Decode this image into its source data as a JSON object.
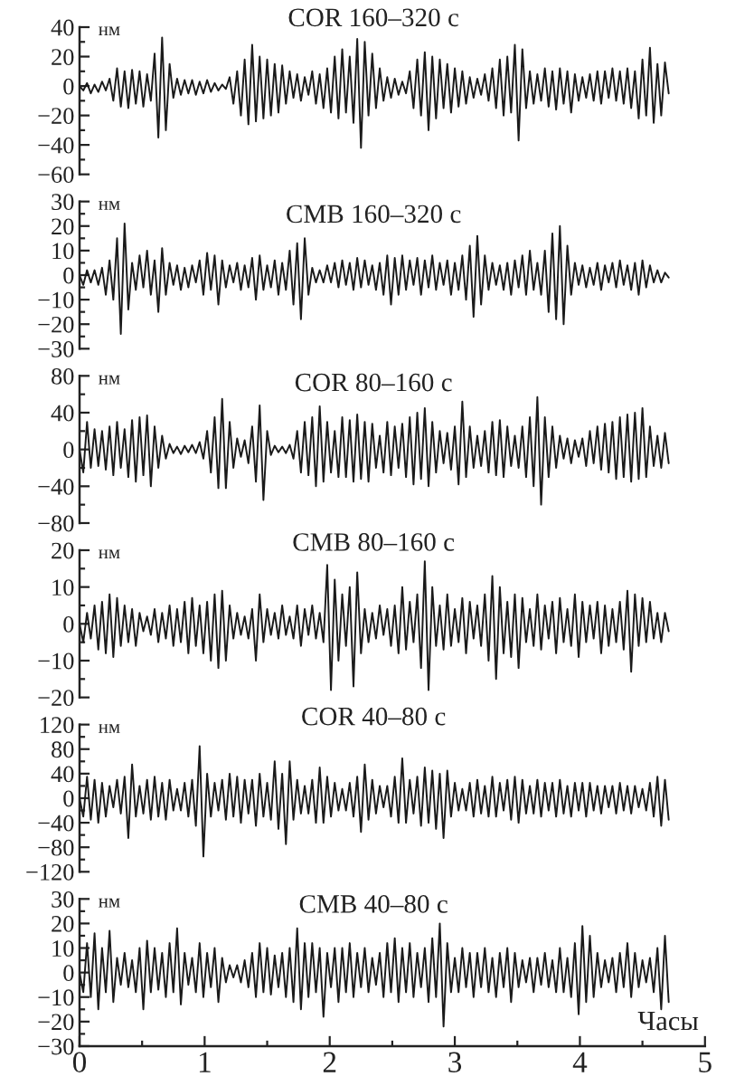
{
  "chart_data": [
    {
      "type": "line",
      "title": "COR 160–320 с",
      "ylabel": "нм",
      "color": "#1a1a1a",
      "x": [
        0,
        0.03,
        0.06,
        0.09,
        0.12,
        0.15,
        0.18,
        0.21,
        0.24,
        0.27,
        0.3,
        0.33,
        0.36,
        0.39,
        0.42,
        0.45,
        0.48,
        0.51,
        0.54,
        0.57,
        0.6,
        0.63,
        0.66,
        0.69,
        0.72,
        0.75,
        0.78,
        0.81,
        0.84,
        0.87,
        0.9,
        0.93,
        0.96,
        0.99,
        1.02,
        1.05,
        1.08,
        1.11,
        1.14,
        1.17,
        1.2,
        1.23,
        1.26,
        1.29,
        1.32,
        1.35,
        1.38,
        1.41,
        1.44,
        1.47,
        1.5,
        1.53,
        1.56,
        1.59,
        1.62,
        1.65,
        1.68,
        1.71,
        1.74,
        1.77,
        1.8,
        1.83,
        1.86,
        1.89,
        1.92,
        1.95,
        1.98,
        2.01,
        2.04,
        2.07,
        2.1,
        2.13,
        2.16,
        2.19,
        2.22,
        2.25,
        2.28,
        2.31,
        2.34,
        2.37,
        2.4,
        2.43,
        2.46,
        2.49,
        2.52,
        2.55,
        2.58,
        2.61,
        2.64,
        2.67,
        2.7,
        2.73,
        2.76,
        2.79,
        2.82,
        2.85,
        2.88,
        2.91,
        2.94,
        2.97,
        3,
        3.03,
        3.06,
        3.09,
        3.12,
        3.15,
        3.18,
        3.21,
        3.24,
        3.27,
        3.3,
        3.33,
        3.36,
        3.39,
        3.42,
        3.45,
        3.48,
        3.51,
        3.54,
        3.57,
        3.6,
        3.63,
        3.66,
        3.69,
        3.72,
        3.75,
        3.78,
        3.81,
        3.84,
        3.87,
        3.9,
        3.93,
        3.96,
        3.99,
        4.02,
        4.05,
        4.08,
        4.11,
        4.14,
        4.17,
        4.2,
        4.23,
        4.26,
        4.29,
        4.32,
        4.35,
        4.38,
        4.41,
        4.44,
        4.47,
        4.5,
        4.53,
        4.56,
        4.59,
        4.62,
        4.65,
        4.68,
        4.71
      ],
      "values": [
        0,
        -3,
        2,
        -5,
        1,
        -4,
        3,
        -3,
        5,
        -10,
        12,
        -14,
        10,
        -15,
        11,
        -12,
        10,
        -14,
        8,
        -10,
        22,
        -35,
        33,
        -30,
        15,
        -8,
        5,
        -6,
        4,
        -5,
        4,
        -6,
        3,
        -5,
        4,
        -4,
        2,
        -3,
        1,
        -2,
        6,
        -12,
        10,
        -20,
        18,
        -26,
        28,
        -24,
        20,
        -22,
        18,
        -20,
        15,
        -18,
        14,
        -12,
        10,
        -8,
        8,
        -10,
        6,
        -6,
        10,
        -12,
        8,
        -15,
        12,
        -18,
        20,
        -22,
        25,
        -18,
        20,
        -25,
        32,
        -42,
        30,
        -20,
        22,
        -15,
        12,
        -10,
        6,
        -8,
        5,
        -6,
        3,
        -5,
        10,
        -15,
        18,
        -20,
        23,
        -30,
        20,
        -22,
        18,
        -15,
        15,
        -18,
        12,
        -14,
        10,
        -12,
        6,
        -8,
        5,
        -6,
        8,
        -10,
        12,
        -15,
        18,
        -20,
        20,
        -18,
        28,
        -37,
        25,
        -15,
        10,
        -12,
        8,
        -10,
        12,
        -14,
        10,
        -16,
        12,
        -12,
        10,
        -18,
        8,
        -10,
        6,
        -8,
        8,
        -10,
        10,
        -12,
        10,
        -8,
        12,
        -10,
        10,
        -12,
        12,
        -15,
        10,
        -22,
        18,
        -20,
        26,
        -25,
        15,
        -20,
        16,
        -5
      ],
      "xlim": [
        0,
        5
      ],
      "ylim": [
        -60,
        40
      ],
      "yticks": [
        40,
        20,
        0,
        -20,
        -40,
        -60,
        {
          "value": 30,
          "label": null
        },
        {
          "value": 10,
          "label": null
        },
        {
          "value": -10,
          "label": null
        },
        {
          "value": -30,
          "label": null
        },
        {
          "value": -50,
          "label": null
        }
      ],
      "tick_labels": "y"
    },
    {
      "type": "line",
      "title": "CMB 160–320 с",
      "ylabel": "нм",
      "color": "#1a1a1a",
      "x": [
        0,
        0.03,
        0.06,
        0.09,
        0.12,
        0.15,
        0.18,
        0.21,
        0.24,
        0.27,
        0.3,
        0.33,
        0.36,
        0.39,
        0.42,
        0.45,
        0.48,
        0.51,
        0.54,
        0.57,
        0.6,
        0.63,
        0.66,
        0.69,
        0.72,
        0.75,
        0.78,
        0.81,
        0.84,
        0.87,
        0.9,
        0.93,
        0.96,
        0.99,
        1.02,
        1.05,
        1.08,
        1.11,
        1.14,
        1.17,
        1.2,
        1.23,
        1.26,
        1.29,
        1.32,
        1.35,
        1.38,
        1.41,
        1.44,
        1.47,
        1.5,
        1.53,
        1.56,
        1.59,
        1.62,
        1.65,
        1.68,
        1.71,
        1.74,
        1.77,
        1.8,
        1.83,
        1.86,
        1.89,
        1.92,
        1.95,
        1.98,
        2.01,
        2.04,
        2.07,
        2.1,
        2.13,
        2.16,
        2.19,
        2.22,
        2.25,
        2.28,
        2.31,
        2.34,
        2.37,
        2.4,
        2.43,
        2.46,
        2.49,
        2.52,
        2.55,
        2.58,
        2.61,
        2.64,
        2.67,
        2.7,
        2.73,
        2.76,
        2.79,
        2.82,
        2.85,
        2.88,
        2.91,
        2.94,
        2.97,
        3,
        3.03,
        3.06,
        3.09,
        3.12,
        3.15,
        3.18,
        3.21,
        3.24,
        3.27,
        3.3,
        3.33,
        3.36,
        3.39,
        3.42,
        3.45,
        3.48,
        3.51,
        3.54,
        3.57,
        3.6,
        3.63,
        3.66,
        3.69,
        3.72,
        3.75,
        3.78,
        3.81,
        3.84,
        3.87,
        3.9,
        3.93,
        3.96,
        3.99,
        4.02,
        4.05,
        4.08,
        4.11,
        4.14,
        4.17,
        4.2,
        4.23,
        4.26,
        4.29,
        4.32,
        4.35,
        4.38,
        4.41,
        4.44,
        4.47,
        4.5,
        4.53,
        4.56,
        4.59,
        4.62,
        4.65,
        4.68,
        4.71
      ],
      "values": [
        0,
        -4,
        2,
        -3,
        2,
        -4,
        3,
        -8,
        6,
        -10,
        15,
        -24,
        21,
        -14,
        5,
        -6,
        8,
        -5,
        10,
        -8,
        6,
        -15,
        11,
        -8,
        5,
        -4,
        4,
        -6,
        3,
        -5,
        4,
        -3,
        6,
        -8,
        9,
        -6,
        8,
        -12,
        6,
        -5,
        4,
        -3,
        5,
        -6,
        4,
        -5,
        7,
        -10,
        8,
        -6,
        4,
        -5,
        6,
        -8,
        5,
        -6,
        10,
        -12,
        13,
        -18,
        15,
        -8,
        3,
        -3,
        2,
        -3,
        4,
        -3,
        5,
        -5,
        6,
        -4,
        5,
        -6,
        7,
        -5,
        6,
        -4,
        4,
        -6,
        5,
        -8,
        8,
        -12,
        7,
        -8,
        8,
        -6,
        6,
        -4,
        7,
        -8,
        6,
        -5,
        8,
        -6,
        5,
        -4,
        6,
        -8,
        5,
        -6,
        8,
        -10,
        12,
        -17,
        16,
        -12,
        8,
        -6,
        5,
        -4,
        4,
        -6,
        5,
        -8,
        6,
        -5,
        8,
        -8,
        10,
        -6,
        5,
        -8,
        10,
        -15,
        17,
        -18,
        20,
        -20,
        12,
        -8,
        5,
        -4,
        4,
        -5,
        3,
        -4,
        5,
        -6,
        4,
        -3,
        5,
        -5,
        6,
        -4,
        4,
        -6,
        5,
        -8,
        6,
        -5,
        4,
        -3,
        2,
        -3,
        1,
        -1
      ],
      "xlim": [
        0,
        5
      ],
      "ylim": [
        -30,
        30
      ],
      "yticks": [
        30,
        20,
        10,
        0,
        -10,
        -20,
        -30,
        {
          "value": 25,
          "label": null
        },
        {
          "value": 15,
          "label": null
        },
        {
          "value": 5,
          "label": null
        },
        {
          "value": -5,
          "label": null
        },
        {
          "value": -15,
          "label": null
        },
        {
          "value": -25,
          "label": null
        }
      ],
      "tick_labels": "y"
    },
    {
      "type": "line",
      "title": "COR 80–160 с",
      "ylabel": "нм",
      "color": "#1a1a1a",
      "x": [
        0,
        0.03,
        0.06,
        0.09,
        0.12,
        0.15,
        0.18,
        0.21,
        0.24,
        0.27,
        0.3,
        0.33,
        0.36,
        0.39,
        0.42,
        0.45,
        0.48,
        0.51,
        0.54,
        0.57,
        0.6,
        0.63,
        0.66,
        0.69,
        0.72,
        0.75,
        0.78,
        0.81,
        0.84,
        0.87,
        0.9,
        0.93,
        0.96,
        0.99,
        1.02,
        1.05,
        1.08,
        1.11,
        1.14,
        1.17,
        1.2,
        1.23,
        1.26,
        1.29,
        1.32,
        1.35,
        1.38,
        1.41,
        1.44,
        1.47,
        1.5,
        1.53,
        1.56,
        1.59,
        1.62,
        1.65,
        1.68,
        1.71,
        1.74,
        1.77,
        1.8,
        1.83,
        1.86,
        1.89,
        1.92,
        1.95,
        1.98,
        2.01,
        2.04,
        2.07,
        2.1,
        2.13,
        2.16,
        2.19,
        2.22,
        2.25,
        2.28,
        2.31,
        2.34,
        2.37,
        2.4,
        2.43,
        2.46,
        2.49,
        2.52,
        2.55,
        2.58,
        2.61,
        2.64,
        2.67,
        2.7,
        2.73,
        2.76,
        2.79,
        2.82,
        2.85,
        2.88,
        2.91,
        2.94,
        2.97,
        3,
        3.03,
        3.06,
        3.09,
        3.12,
        3.15,
        3.18,
        3.21,
        3.24,
        3.27,
        3.3,
        3.33,
        3.36,
        3.39,
        3.42,
        3.45,
        3.48,
        3.51,
        3.54,
        3.57,
        3.6,
        3.63,
        3.66,
        3.69,
        3.72,
        3.75,
        3.78,
        3.81,
        3.84,
        3.87,
        3.9,
        3.93,
        3.96,
        3.99,
        4.02,
        4.05,
        4.08,
        4.11,
        4.14,
        4.17,
        4.2,
        4.23,
        4.26,
        4.29,
        4.32,
        4.35,
        4.38,
        4.41,
        4.44,
        4.47,
        4.5,
        4.53,
        4.56,
        4.59,
        4.62,
        4.65,
        4.68,
        4.71
      ],
      "values": [
        0,
        -25,
        30,
        -20,
        22,
        -18,
        20,
        -22,
        25,
        -28,
        30,
        -20,
        22,
        -30,
        32,
        -35,
        35,
        -28,
        37,
        -40,
        25,
        -20,
        15,
        -10,
        6,
        -4,
        3,
        -5,
        4,
        -3,
        5,
        -4,
        8,
        -10,
        20,
        -25,
        35,
        -42,
        55,
        -42,
        30,
        -20,
        12,
        -8,
        10,
        -15,
        25,
        -35,
        48,
        -55,
        20,
        -6,
        4,
        -3,
        3,
        -4,
        5,
        -10,
        20,
        -25,
        30,
        -28,
        35,
        -40,
        47,
        -35,
        30,
        -25,
        20,
        -30,
        35,
        -30,
        32,
        -35,
        38,
        -32,
        30,
        -35,
        28,
        -20,
        15,
        -25,
        30,
        -28,
        25,
        -20,
        28,
        -30,
        35,
        -38,
        40,
        -32,
        45,
        -40,
        30,
        -25,
        20,
        -15,
        18,
        -22,
        25,
        -38,
        52,
        -30,
        25,
        -20,
        15,
        -18,
        20,
        -25,
        30,
        -28,
        32,
        -30,
        25,
        -18,
        15,
        -20,
        25,
        -30,
        35,
        -40,
        57,
        -60,
        35,
        -30,
        25,
        -20,
        15,
        -10,
        12,
        -15,
        10,
        -8,
        12,
        -18,
        20,
        -15,
        25,
        -22,
        28,
        -25,
        30,
        -32,
        35,
        -30,
        38,
        -35,
        40,
        -32,
        45,
        -30,
        25,
        -18,
        15,
        -20,
        18,
        -15
      ],
      "xlim": [
        0,
        5
      ],
      "ylim": [
        -80,
        80
      ],
      "yticks": [
        80,
        40,
        0,
        -40,
        -80,
        {
          "value": 60,
          "label": null
        },
        {
          "value": 20,
          "label": null
        },
        {
          "value": -20,
          "label": null
        },
        {
          "value": -60,
          "label": null
        }
      ],
      "tick_labels": "y"
    },
    {
      "type": "line",
      "title": "CMB 80–160 с",
      "ylabel": "нм",
      "color": "#1a1a1a",
      "x": [
        0,
        0.03,
        0.06,
        0.09,
        0.12,
        0.15,
        0.18,
        0.21,
        0.24,
        0.27,
        0.3,
        0.33,
        0.36,
        0.39,
        0.42,
        0.45,
        0.48,
        0.51,
        0.54,
        0.57,
        0.6,
        0.63,
        0.66,
        0.69,
        0.72,
        0.75,
        0.78,
        0.81,
        0.84,
        0.87,
        0.9,
        0.93,
        0.96,
        0.99,
        1.02,
        1.05,
        1.08,
        1.11,
        1.14,
        1.17,
        1.2,
        1.23,
        1.26,
        1.29,
        1.32,
        1.35,
        1.38,
        1.41,
        1.44,
        1.47,
        1.5,
        1.53,
        1.56,
        1.59,
        1.62,
        1.65,
        1.68,
        1.71,
        1.74,
        1.77,
        1.8,
        1.83,
        1.86,
        1.89,
        1.92,
        1.95,
        1.98,
        2.01,
        2.04,
        2.07,
        2.1,
        2.13,
        2.16,
        2.19,
        2.22,
        2.25,
        2.28,
        2.31,
        2.34,
        2.37,
        2.4,
        2.43,
        2.46,
        2.49,
        2.52,
        2.55,
        2.58,
        2.61,
        2.64,
        2.67,
        2.7,
        2.73,
        2.76,
        2.79,
        2.82,
        2.85,
        2.88,
        2.91,
        2.94,
        2.97,
        3,
        3.03,
        3.06,
        3.09,
        3.12,
        3.15,
        3.18,
        3.21,
        3.24,
        3.27,
        3.3,
        3.33,
        3.36,
        3.39,
        3.42,
        3.45,
        3.48,
        3.51,
        3.54,
        3.57,
        3.6,
        3.63,
        3.66,
        3.69,
        3.72,
        3.75,
        3.78,
        3.81,
        3.84,
        3.87,
        3.9,
        3.93,
        3.96,
        3.99,
        4.02,
        4.05,
        4.08,
        4.11,
        4.14,
        4.17,
        4.2,
        4.23,
        4.26,
        4.29,
        4.32,
        4.35,
        4.38,
        4.41,
        4.44,
        4.47,
        4.5,
        4.53,
        4.56,
        4.59,
        4.62,
        4.65,
        4.68,
        4.71
      ],
      "values": [
        0,
        -5,
        3,
        -4,
        5,
        -7,
        6,
        -8,
        8,
        -9,
        7,
        -6,
        5,
        -5,
        4,
        -6,
        3,
        -2,
        2,
        -3,
        4,
        -5,
        3,
        -4,
        5,
        -6,
        4,
        -5,
        6,
        -8,
        7,
        -6,
        5,
        -8,
        6,
        -10,
        8,
        -12,
        9,
        -10,
        5,
        -4,
        3,
        -3,
        2,
        -4,
        4,
        -10,
        8,
        -5,
        4,
        -3,
        3,
        -4,
        5,
        -3,
        2,
        -4,
        5,
        -6,
        4,
        -3,
        5,
        -4,
        3,
        -5,
        16,
        -18,
        12,
        -10,
        8,
        -6,
        10,
        -17,
        14,
        -8,
        4,
        -5,
        3,
        -4,
        5,
        -3,
        4,
        -6,
        5,
        -8,
        10,
        -7,
        6,
        -5,
        8,
        -12,
        17,
        -18,
        10,
        -6,
        5,
        -7,
        8,
        -6,
        4,
        -5,
        7,
        -8,
        6,
        -4,
        5,
        -6,
        8,
        -10,
        13,
        -15,
        10,
        -8,
        6,
        -9,
        8,
        -12,
        7,
        -5,
        4,
        -6,
        8,
        -7,
        5,
        -4,
        6,
        -8,
        7,
        -5,
        4,
        -6,
        8,
        -9,
        6,
        -5,
        5,
        -4,
        6,
        -8,
        5,
        -6,
        4,
        -5,
        6,
        -7,
        9,
        -13,
        8,
        -6,
        7,
        -5,
        6,
        -4,
        3,
        -5,
        3,
        -2
      ],
      "xlim": [
        0,
        5
      ],
      "ylim": [
        -20,
        20
      ],
      "yticks": [
        20,
        10,
        0,
        -10,
        -20,
        {
          "value": 15,
          "label": null
        },
        {
          "value": 5,
          "label": null
        },
        {
          "value": -5,
          "label": null
        },
        {
          "value": -15,
          "label": null
        }
      ],
      "tick_labels": "y"
    },
    {
      "type": "line",
      "title": "COR 40–80 с",
      "ylabel": "нм",
      "color": "#1a1a1a",
      "x": [
        0,
        0.03,
        0.06,
        0.09,
        0.12,
        0.15,
        0.18,
        0.21,
        0.24,
        0.27,
        0.3,
        0.33,
        0.36,
        0.39,
        0.42,
        0.45,
        0.48,
        0.51,
        0.54,
        0.57,
        0.6,
        0.63,
        0.66,
        0.69,
        0.72,
        0.75,
        0.78,
        0.81,
        0.84,
        0.87,
        0.9,
        0.93,
        0.96,
        0.99,
        1.02,
        1.05,
        1.08,
        1.11,
        1.14,
        1.17,
        1.2,
        1.23,
        1.26,
        1.29,
        1.32,
        1.35,
        1.38,
        1.41,
        1.44,
        1.47,
        1.5,
        1.53,
        1.56,
        1.59,
        1.62,
        1.65,
        1.68,
        1.71,
        1.74,
        1.77,
        1.8,
        1.83,
        1.86,
        1.89,
        1.92,
        1.95,
        1.98,
        2.01,
        2.04,
        2.07,
        2.1,
        2.13,
        2.16,
        2.19,
        2.22,
        2.25,
        2.28,
        2.31,
        2.34,
        2.37,
        2.4,
        2.43,
        2.46,
        2.49,
        2.52,
        2.55,
        2.58,
        2.61,
        2.64,
        2.67,
        2.7,
        2.73,
        2.76,
        2.79,
        2.82,
        2.85,
        2.88,
        2.91,
        2.94,
        2.97,
        3,
        3.03,
        3.06,
        3.09,
        3.12,
        3.15,
        3.18,
        3.21,
        3.24,
        3.27,
        3.3,
        3.33,
        3.36,
        3.39,
        3.42,
        3.45,
        3.48,
        3.51,
        3.54,
        3.57,
        3.6,
        3.63,
        3.66,
        3.69,
        3.72,
        3.75,
        3.78,
        3.81,
        3.84,
        3.87,
        3.9,
        3.93,
        3.96,
        3.99,
        4.02,
        4.05,
        4.08,
        4.11,
        4.14,
        4.17,
        4.2,
        4.23,
        4.26,
        4.29,
        4.32,
        4.35,
        4.38,
        4.41,
        4.44,
        4.47,
        4.5,
        4.53,
        4.56,
        4.59,
        4.62,
        4.65,
        4.68,
        4.71
      ],
      "values": [
        0,
        -30,
        35,
        -35,
        30,
        -40,
        25,
        -30,
        20,
        -15,
        30,
        -25,
        35,
        -65,
        55,
        -30,
        20,
        -25,
        30,
        -35,
        35,
        -30,
        25,
        -35,
        30,
        -20,
        15,
        -20,
        25,
        -30,
        30,
        -45,
        85,
        -95,
        40,
        -30,
        25,
        -20,
        30,
        -35,
        40,
        -30,
        35,
        -40,
        30,
        -25,
        30,
        -45,
        40,
        -30,
        25,
        -35,
        60,
        -50,
        40,
        -75,
        60,
        -35,
        30,
        -25,
        20,
        -25,
        30,
        -40,
        50,
        -40,
        35,
        -30,
        25,
        -20,
        15,
        -20,
        25,
        -30,
        35,
        -55,
        55,
        -35,
        30,
        -25,
        20,
        -15,
        20,
        -30,
        35,
        -40,
        65,
        -40,
        30,
        -25,
        35,
        -45,
        50,
        -40,
        45,
        -50,
        40,
        -65,
        45,
        -30,
        25,
        -20,
        15,
        -20,
        25,
        -30,
        30,
        -25,
        20,
        -30,
        35,
        -30,
        25,
        -20,
        30,
        -35,
        35,
        -40,
        30,
        -25,
        20,
        -25,
        30,
        -30,
        25,
        -20,
        25,
        -30,
        30,
        -25,
        20,
        -30,
        25,
        -20,
        25,
        -30,
        25,
        -20,
        20,
        -25,
        20,
        -15,
        20,
        -25,
        25,
        -20,
        20,
        -25,
        20,
        -15,
        15,
        -20,
        25,
        -30,
        35,
        -45,
        30,
        -35
      ],
      "xlim": [
        0,
        5
      ],
      "ylim": [
        -120,
        120
      ],
      "yticks": [
        120,
        80,
        40,
        0,
        -40,
        -80,
        -120,
        {
          "value": 100,
          "label": null
        },
        {
          "value": 60,
          "label": null
        },
        {
          "value": 20,
          "label": null
        },
        {
          "value": -20,
          "label": null
        },
        {
          "value": -60,
          "label": null
        },
        {
          "value": -100,
          "label": null
        }
      ],
      "tick_labels": "y"
    },
    {
      "type": "line",
      "title": "CMB 40–80 с",
      "ylabel": "нм",
      "xlabel": "Часы",
      "color": "#1a1a1a",
      "x": [
        0,
        0.03,
        0.06,
        0.09,
        0.12,
        0.15,
        0.18,
        0.21,
        0.24,
        0.27,
        0.3,
        0.33,
        0.36,
        0.39,
        0.42,
        0.45,
        0.48,
        0.51,
        0.54,
        0.57,
        0.6,
        0.63,
        0.66,
        0.69,
        0.72,
        0.75,
        0.78,
        0.81,
        0.84,
        0.87,
        0.9,
        0.93,
        0.96,
        0.99,
        1.02,
        1.05,
        1.08,
        1.11,
        1.14,
        1.17,
        1.2,
        1.23,
        1.26,
        1.29,
        1.32,
        1.35,
        1.38,
        1.41,
        1.44,
        1.47,
        1.5,
        1.53,
        1.56,
        1.59,
        1.62,
        1.65,
        1.68,
        1.71,
        1.74,
        1.77,
        1.8,
        1.83,
        1.86,
        1.89,
        1.92,
        1.95,
        1.98,
        2.01,
        2.04,
        2.07,
        2.1,
        2.13,
        2.16,
        2.19,
        2.22,
        2.25,
        2.28,
        2.31,
        2.34,
        2.37,
        2.4,
        2.43,
        2.46,
        2.49,
        2.52,
        2.55,
        2.58,
        2.61,
        2.64,
        2.67,
        2.7,
        2.73,
        2.76,
        2.79,
        2.82,
        2.85,
        2.88,
        2.91,
        2.94,
        2.97,
        3,
        3.03,
        3.06,
        3.09,
        3.12,
        3.15,
        3.18,
        3.21,
        3.24,
        3.27,
        3.3,
        3.33,
        3.36,
        3.39,
        3.42,
        3.45,
        3.48,
        3.51,
        3.54,
        3.57,
        3.6,
        3.63,
        3.66,
        3.69,
        3.72,
        3.75,
        3.78,
        3.81,
        3.84,
        3.87,
        3.9,
        3.93,
        3.96,
        3.99,
        4.02,
        4.05,
        4.08,
        4.11,
        4.14,
        4.17,
        4.2,
        4.23,
        4.26,
        4.29,
        4.32,
        4.35,
        4.38,
        4.41,
        4.44,
        4.47,
        4.5,
        4.53,
        4.56,
        4.59,
        4.62,
        4.65,
        4.68,
        4.71
      ],
      "values": [
        0,
        -8,
        12,
        -10,
        16,
        -15,
        10,
        -8,
        17,
        -12,
        6,
        -5,
        8,
        -6,
        5,
        -8,
        10,
        -15,
        13,
        -8,
        10,
        -7,
        8,
        -10,
        12,
        -8,
        18,
        -13,
        8,
        -5,
        6,
        -8,
        12,
        -10,
        8,
        -6,
        10,
        -12,
        6,
        -4,
        3,
        -2,
        3,
        -4,
        5,
        -6,
        8,
        -10,
        12,
        -8,
        10,
        -9,
        7,
        -6,
        8,
        -10,
        10,
        -12,
        18,
        -15,
        12,
        -10,
        12,
        -8,
        10,
        -18,
        8,
        -6,
        10,
        -12,
        10,
        -8,
        12,
        -10,
        8,
        -6,
        10,
        -8,
        6,
        -5,
        8,
        -10,
        12,
        -8,
        14,
        -12,
        10,
        -8,
        12,
        -10,
        8,
        -6,
        10,
        -12,
        14,
        -10,
        20,
        -22,
        12,
        -8,
        6,
        -8,
        10,
        -6,
        8,
        -10,
        8,
        -6,
        10,
        -8,
        6,
        -10,
        8,
        -6,
        10,
        -12,
        8,
        -6,
        5,
        -4,
        6,
        -8,
        6,
        -5,
        8,
        -6,
        5,
        -8,
        10,
        -8,
        6,
        -10,
        12,
        -17,
        19,
        -12,
        15,
        -10,
        8,
        -6,
        5,
        -4,
        6,
        -8,
        8,
        -6,
        12,
        -10,
        8,
        -6,
        5,
        -4,
        6,
        -8,
        10,
        -15,
        15,
        -12
      ],
      "xlim": [
        0,
        5
      ],
      "ylim": [
        -30,
        30
      ],
      "xticks": [
        0,
        1,
        2,
        3,
        4,
        5,
        {
          "value": 0.5,
          "label": null
        },
        {
          "value": 1.5,
          "label": null
        },
        {
          "value": 2.5,
          "label": null
        },
        {
          "value": 3.5,
          "label": null
        },
        {
          "value": 4.5,
          "label": null
        }
      ],
      "yticks": [
        30,
        20,
        10,
        0,
        -10,
        -20,
        -30,
        {
          "value": 25,
          "label": null
        },
        {
          "value": 15,
          "label": null
        },
        {
          "value": 5,
          "label": null
        },
        {
          "value": -5,
          "label": null
        },
        {
          "value": -15,
          "label": null
        },
        {
          "value": -25,
          "label": null
        }
      ]
    }
  ]
}
